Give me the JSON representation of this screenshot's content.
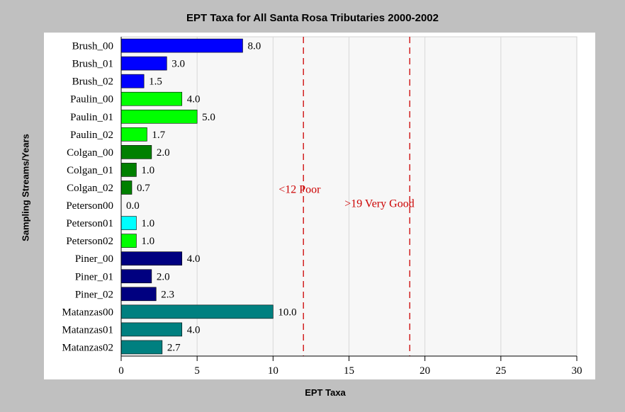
{
  "chart_data": {
    "type": "bar",
    "orientation": "horizontal",
    "title": "EPT Taxa for All Santa Rosa Tributaries 2000-2002",
    "xlabel": "EPT Taxa",
    "ylabel": "Sampling Streams/Years",
    "xlim": [
      0,
      30
    ],
    "xticks": [
      "0",
      "5",
      "10",
      "15",
      "20",
      "25",
      "30"
    ],
    "grid": true,
    "categories": [
      "Brush_00",
      "Brush_01",
      "Brush_02",
      "Paulin_00",
      "Paulin_01",
      "Paulin_02",
      "Colgan_00",
      "Colgan_01",
      "Colgan_02",
      "Peterson00",
      "Peterson01",
      "Peterson02",
      "Piner_00",
      "Piner_01",
      "Piner_02",
      "Matanzas00",
      "Matanzas01",
      "Matanzas02"
    ],
    "values": [
      8.0,
      3.0,
      1.5,
      4.0,
      5.0,
      1.7,
      2.0,
      1.0,
      0.7,
      0.0,
      1.0,
      1.0,
      4.0,
      2.0,
      2.3,
      10.0,
      4.0,
      2.7
    ],
    "value_labels": [
      "8.0",
      "3.0",
      "1.5",
      "4.0",
      "5.0",
      "1.7",
      "2.0",
      "1.0",
      "0.7",
      "0.0",
      "1.0",
      "1.0",
      "4.0",
      "2.0",
      "2.3",
      "10.0",
      "4.0",
      "2.7"
    ],
    "colors": [
      "#0000ff",
      "#0000ff",
      "#0000ff",
      "#00ff00",
      "#00ff00",
      "#00ff00",
      "#008000",
      "#008000",
      "#008000",
      "#00ffff",
      "#00ffff",
      "#00ff00",
      "#000080",
      "#000080",
      "#000080",
      "#008080",
      "#008080",
      "#008080"
    ],
    "reference_lines": [
      {
        "x": 12,
        "label": "<12 Poor",
        "color": "#cc0000"
      },
      {
        "x": 19,
        "label": ">19 Very Good",
        "color": "#cc0000"
      }
    ]
  }
}
